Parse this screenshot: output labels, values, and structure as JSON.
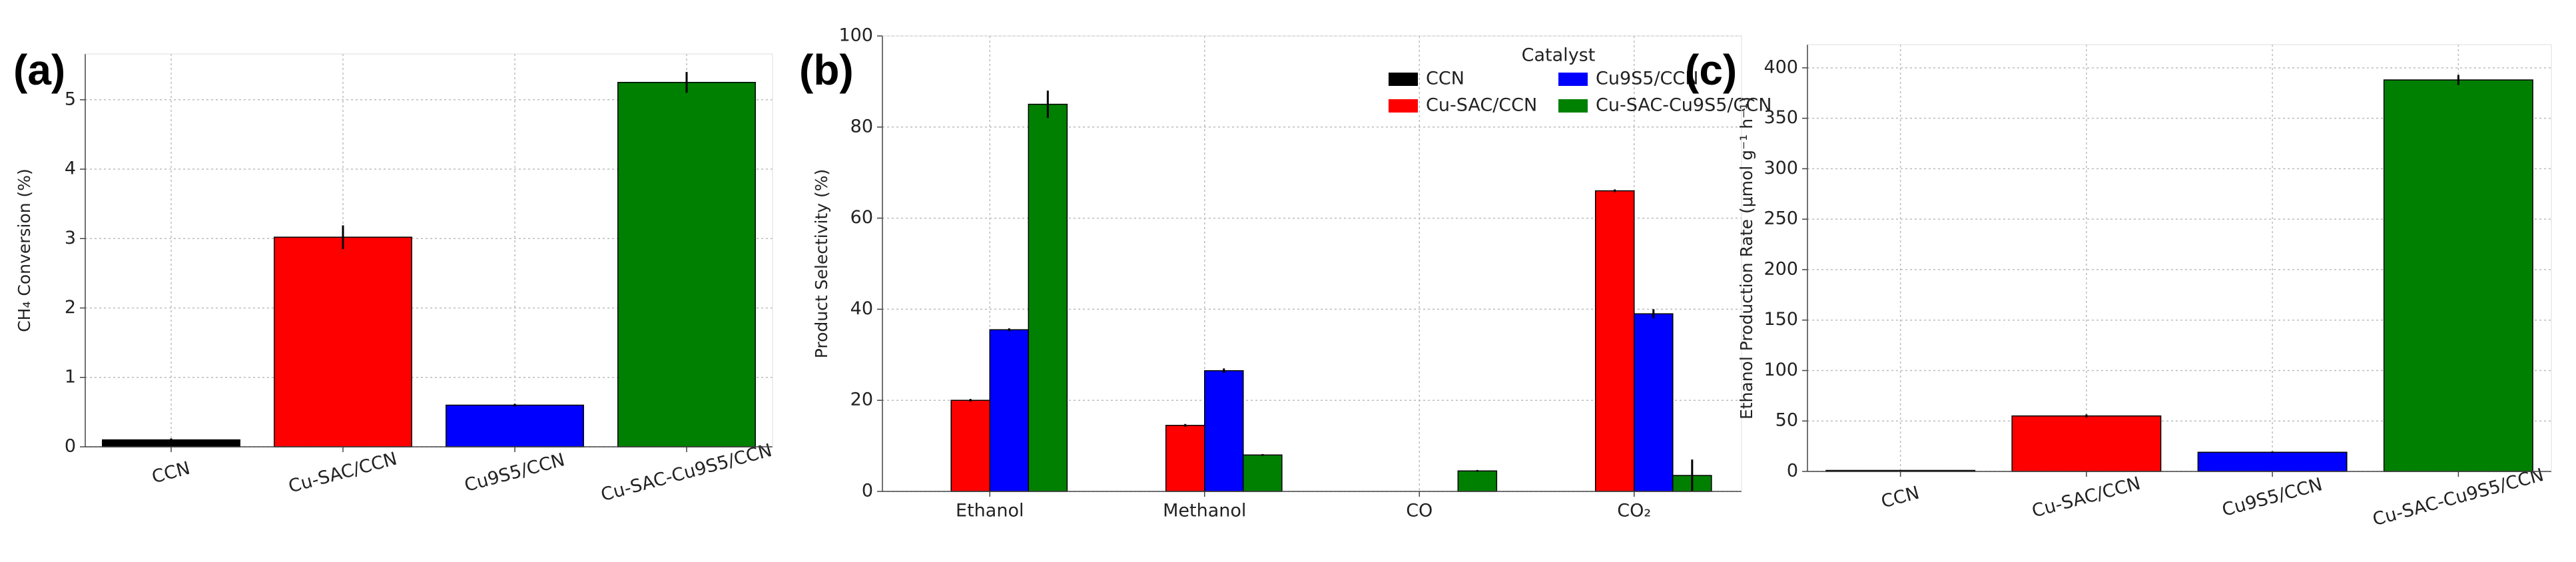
{
  "chart_data": [
    {
      "type": "bar",
      "panel_label": "(a)",
      "y_label": "CH₄ Conversion (%)",
      "categories": [
        "CCN",
        "Cu-SAC/CCN",
        "Cu9S5/CCN",
        "Cu-SAC-Cu9S5/CCN"
      ],
      "values": [
        0.1,
        3.02,
        0.6,
        5.25
      ],
      "errors": [
        0.02,
        0.17,
        0.02,
        0.15
      ],
      "colors": [
        "#000000",
        "#ff0000",
        "#0000ff",
        "#008000"
      ],
      "ylim": [
        0,
        5.66
      ],
      "yticks": [
        0,
        1,
        2,
        3,
        4,
        5
      ],
      "grid": true
    },
    {
      "type": "grouped-bar",
      "panel_label": "(b)",
      "y_label": "Product Selectivity (%)",
      "categories": [
        "Ethanol",
        "Methanol",
        "CO",
        "CO₂"
      ],
      "legend_title": "Catalyst",
      "legend": "upper right",
      "series": [
        {
          "name": "CCN",
          "color": "#000000",
          "values": [
            0,
            0,
            0,
            0
          ],
          "errors": [
            0,
            0,
            0,
            0
          ]
        },
        {
          "name": "Cu-SAC/CCN",
          "color": "#ff0000",
          "values": [
            20,
            14.5,
            0,
            66
          ],
          "errors": [
            0.3,
            0.3,
            0,
            0.3
          ]
        },
        {
          "name": "Cu9S5/CCN",
          "color": "#0000ff",
          "values": [
            35.5,
            26.5,
            0,
            39
          ],
          "errors": [
            0.3,
            0.5,
            0,
            1
          ]
        },
        {
          "name": "Cu-SAC-Cu9S5/CCN",
          "color": "#008000",
          "values": [
            85,
            8,
            4.5,
            3.5
          ],
          "errors": [
            3,
            0.2,
            0.2,
            3.5
          ]
        }
      ],
      "ylim": [
        0,
        100
      ],
      "yticks": [
        0,
        20,
        40,
        60,
        80,
        100
      ],
      "grid": true
    },
    {
      "type": "bar",
      "panel_label": "(c)",
      "y_label": "Ethanol Production Rate (μmol g⁻¹ h⁻¹)",
      "categories": [
        "CCN",
        "Cu-SAC/CCN",
        "Cu9S5/CCN",
        "Cu-SAC-Cu9S5/CCN"
      ],
      "values": [
        1,
        55,
        19,
        388
      ],
      "errors": [
        0.3,
        1.5,
        0.8,
        5
      ],
      "colors": [
        "#000000",
        "#ff0000",
        "#0000ff",
        "#008000"
      ],
      "ylim": [
        0,
        423
      ],
      "yticks": [
        0,
        50,
        100,
        150,
        200,
        250,
        300,
        350,
        400
      ],
      "grid": true
    }
  ]
}
